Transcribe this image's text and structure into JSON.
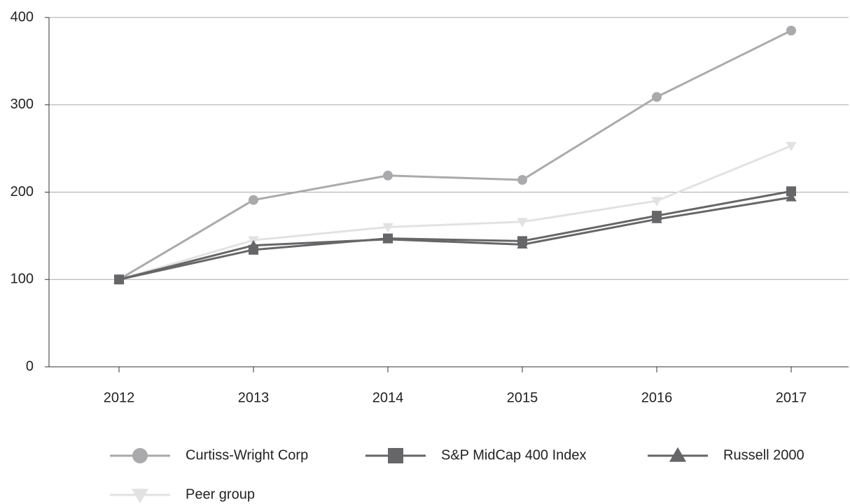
{
  "chart_data": {
    "type": "line",
    "categories": [
      "2012",
      "2013",
      "2014",
      "2015",
      "2016",
      "2017"
    ],
    "series": [
      {
        "name": "Curtiss-Wright Corp",
        "color": "#aaaaac",
        "marker": "circle",
        "values": [
          100,
          191,
          219,
          214,
          309,
          385
        ]
      },
      {
        "name": "S&P MidCap 400 Index",
        "color": "#666668",
        "marker": "square",
        "values": [
          100,
          134,
          147,
          144,
          173,
          201
        ]
      },
      {
        "name": "Russell 2000",
        "color": "#666668",
        "marker": "triangle-up",
        "values": [
          100,
          139,
          146,
          140,
          169,
          194
        ]
      },
      {
        "name": "Peer group",
        "color": "#e2e2e2",
        "marker": "triangle-down",
        "values": [
          100,
          145,
          160,
          166,
          190,
          253
        ]
      }
    ],
    "ylim": [
      0,
      400
    ],
    "yticks": [
      0,
      100,
      200,
      300,
      400
    ],
    "grid": true,
    "legend": "bottom"
  }
}
